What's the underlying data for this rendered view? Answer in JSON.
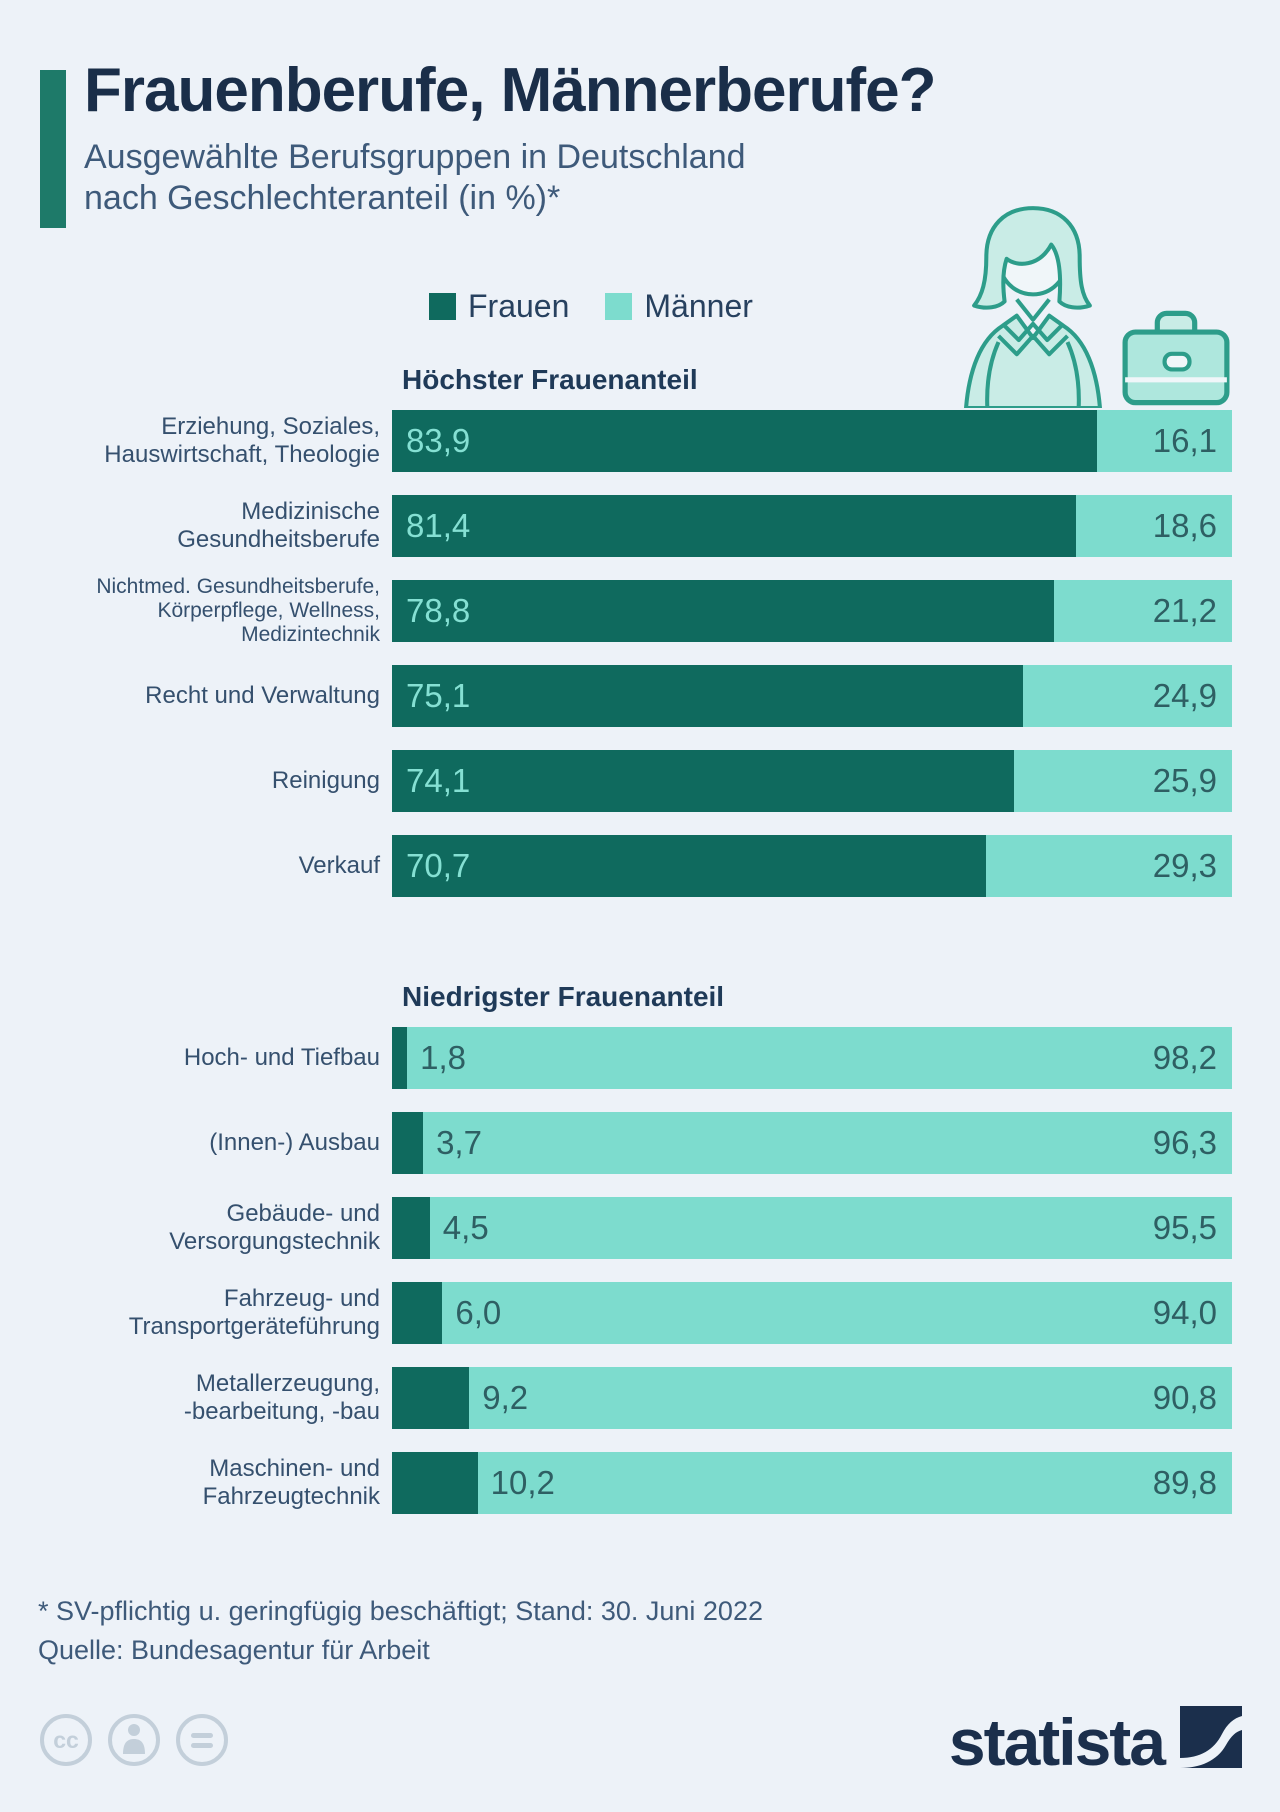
{
  "title": "Frauenberufe, Männerberufe?",
  "subtitle": "Ausgewählte Berufsgruppen in Deutschland\nnach Geschlechteranteil (in %)*",
  "legend": {
    "frauen": "Frauen",
    "maenner": "Männer"
  },
  "colors": {
    "frauen_bar": "#0f6a5e",
    "maenner_bar": "#7ddcce",
    "accent": "#1e7a69",
    "title_text": "#1a2e49",
    "background": "#edf2f8"
  },
  "chart_data": {
    "type": "bar",
    "orientation": "horizontal-stacked",
    "unit": "%",
    "series_names": [
      "Frauen",
      "Männer"
    ],
    "sections": [
      {
        "header": "Höchster Frauenanteil",
        "rows": [
          {
            "label": "Erziehung, Soziales,\nHauswirtschaft, Theologie",
            "frauen": 83.9,
            "maenner": 16.1,
            "frauen_label": "83,9",
            "maenner_label": "16,1"
          },
          {
            "label": "Medizinische\nGesundheitsberufe",
            "frauen": 81.4,
            "maenner": 18.6,
            "frauen_label": "81,4",
            "maenner_label": "18,6"
          },
          {
            "label": "Nichtmed. Gesundheitsberufe,\nKörperpflege, Wellness,\nMedizintechnik",
            "frauen": 78.8,
            "maenner": 21.2,
            "frauen_label": "78,8",
            "maenner_label": "21,2",
            "small": true
          },
          {
            "label": "Recht und Verwaltung",
            "frauen": 75.1,
            "maenner": 24.9,
            "frauen_label": "75,1",
            "maenner_label": "24,9"
          },
          {
            "label": "Reinigung",
            "frauen": 74.1,
            "maenner": 25.9,
            "frauen_label": "74,1",
            "maenner_label": "25,9"
          },
          {
            "label": "Verkauf",
            "frauen": 70.7,
            "maenner": 29.3,
            "frauen_label": "70,7",
            "maenner_label": "29,3"
          }
        ]
      },
      {
        "header": "Niedrigster Frauenanteil",
        "rows": [
          {
            "label": "Hoch- und Tiefbau",
            "frauen": 1.8,
            "maenner": 98.2,
            "frauen_label": "1,8",
            "maenner_label": "98,2"
          },
          {
            "label": "(Innen-) Ausbau",
            "frauen": 3.7,
            "maenner": 96.3,
            "frauen_label": "3,7",
            "maenner_label": "96,3"
          },
          {
            "label": "Gebäude- und\nVersorgungstechnik",
            "frauen": 4.5,
            "maenner": 95.5,
            "frauen_label": "4,5",
            "maenner_label": "95,5"
          },
          {
            "label": "Fahrzeug- und\nTransportgeräteführung",
            "frauen": 6.0,
            "maenner": 94.0,
            "frauen_label": "6,0",
            "maenner_label": "94,0"
          },
          {
            "label": "Metallerzeugung,\n-bearbeitung, -bau",
            "frauen": 9.2,
            "maenner": 90.8,
            "frauen_label": "9,2",
            "maenner_label": "90,8"
          },
          {
            "label": "Maschinen- und\nFahrzeugtechnik",
            "frauen": 10.2,
            "maenner": 89.8,
            "frauen_label": "10,2",
            "maenner_label": "89,8"
          }
        ]
      }
    ]
  },
  "footnote": "* SV-pflichtig u. geringfügig beschäftigt; Stand: 30. Juni 2022",
  "source": "Quelle: Bundesagentur für Arbeit",
  "branding": {
    "logo_text": "statista"
  }
}
